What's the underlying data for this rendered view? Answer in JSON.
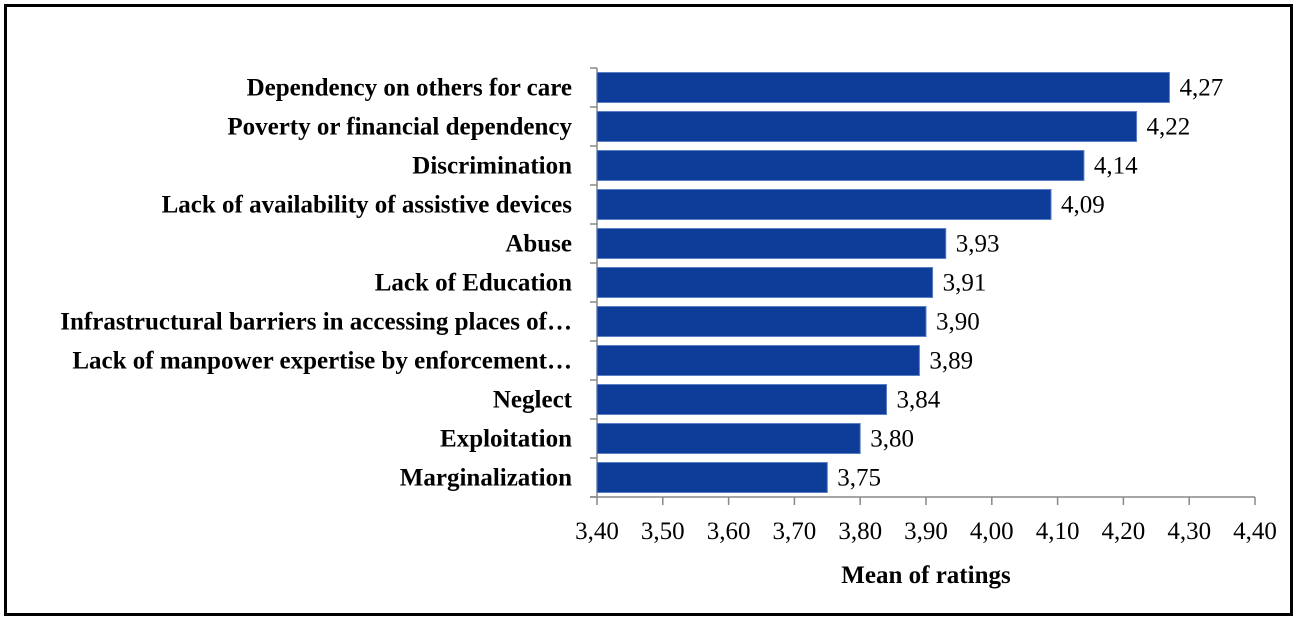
{
  "chart_data": {
    "type": "bar",
    "orientation": "horizontal",
    "categories": [
      "Dependency on others for care",
      "Poverty or financial dependency",
      "Discrimination",
      "Lack of availability of assistive devices",
      "Abuse",
      "Lack of Education",
      "Infrastructural barriers in accessing places of…",
      "Lack of manpower expertise by enforcement…",
      "Neglect",
      "Exploitation",
      "Marginalization"
    ],
    "values": [
      4.27,
      4.22,
      4.14,
      4.09,
      3.93,
      3.91,
      3.9,
      3.89,
      3.84,
      3.8,
      3.75
    ],
    "value_labels": [
      "4,27",
      "4,22",
      "4,14",
      "4,09",
      "3,93",
      "3,91",
      "3,90",
      "3,89",
      "3,84",
      "3,80",
      "3,75"
    ],
    "xlabel": "Mean of ratings",
    "ylabel": "",
    "xlim": [
      3.4,
      4.4
    ],
    "xticks": [
      3.4,
      3.5,
      3.6,
      3.7,
      3.8,
      3.9,
      4.0,
      4.1,
      4.2,
      4.3,
      4.4
    ],
    "xtick_labels": [
      "3,40",
      "3,50",
      "3,60",
      "3,70",
      "3,80",
      "3,90",
      "4,00",
      "4,10",
      "4,20",
      "4,30",
      "4,40"
    ],
    "grid": false,
    "legend": "none",
    "bar_color": "#0d3d99"
  }
}
